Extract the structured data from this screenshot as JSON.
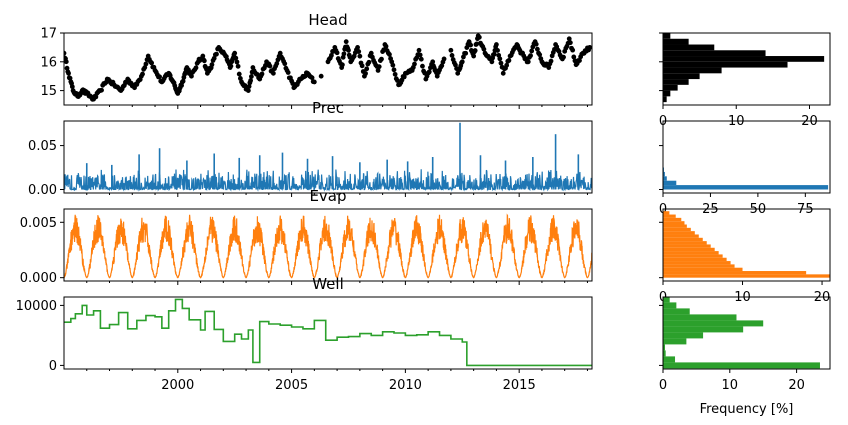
{
  "colors": {
    "head": "#000000",
    "prec": "#1f77b4",
    "evap": "#ff7f0e",
    "well": "#2ca02c"
  },
  "chart_data": [
    {
      "type": "scatter",
      "title": "Head",
      "xlim": [
        1995,
        2018.2
      ],
      "ylim": [
        14.5,
        17
      ],
      "yticks": [
        15,
        16,
        17
      ],
      "yticklabels": [
        "15",
        "16",
        "17"
      ],
      "x": [
        1995.0,
        1995.2,
        1995.4,
        1995.6,
        1995.8,
        1996.0,
        1996.3,
        1996.6,
        1996.9,
        1997.2,
        1997.5,
        1997.8,
        1998.1,
        1998.4,
        1998.7,
        1999.0,
        1999.3,
        1999.6,
        1999.8,
        2000.0,
        2000.2,
        2000.4,
        2000.6,
        2000.9,
        2001.1,
        2001.3,
        2001.5,
        2001.8,
        2002.1,
        2002.3,
        2002.5,
        2002.8,
        2003.1,
        2003.3,
        2003.6,
        2003.9,
        2004.2,
        2004.5,
        2004.8,
        2005.1,
        2005.4,
        2005.7,
        2006.0,
        2006.3,
        2006.6,
        2006.9,
        2007.2,
        2007.4,
        2007.6,
        2007.9,
        2008.2,
        2008.5,
        2008.8,
        2009.1,
        2009.4,
        2009.7,
        2010.0,
        2010.3,
        2010.6,
        2010.9,
        2011.2,
        2011.4,
        2011.7,
        2012.0,
        2012.3,
        2012.5,
        2012.8,
        2013.0,
        2013.2,
        2013.5,
        2013.8,
        2014.0,
        2014.3,
        2014.6,
        2014.9,
        2015.1,
        2015.4,
        2015.7,
        2016.0,
        2016.3,
        2016.6,
        2016.9,
        2017.2,
        2017.5,
        2017.8,
        2018.1
      ],
      "y": [
        16.3,
        15.6,
        15.0,
        14.8,
        15.0,
        14.9,
        14.7,
        15.0,
        15.4,
        15.2,
        15.0,
        15.4,
        15.1,
        15.5,
        16.2,
        15.7,
        15.3,
        15.6,
        15.3,
        14.9,
        15.3,
        15.8,
        15.5,
        16.0,
        16.2,
        15.6,
        15.9,
        16.5,
        16.2,
        15.8,
        16.3,
        15.3,
        15.0,
        15.8,
        15.4,
        16.0,
        15.6,
        16.3,
        15.7,
        15.1,
        15.4,
        15.6,
        15.3,
        15.5,
        16.0,
        16.5,
        15.8,
        16.7,
        16.0,
        16.5,
        15.5,
        16.3,
        15.7,
        16.6,
        16.0,
        15.2,
        15.6,
        15.7,
        16.4,
        15.4,
        16.0,
        15.5,
        16.1,
        16.4,
        15.6,
        16.0,
        16.7,
        16.2,
        16.9,
        16.3,
        16.0,
        16.6,
        15.6,
        16.2,
        16.6,
        16.3,
        16.0,
        16.7,
        16.0,
        15.8,
        16.6,
        16.1,
        16.8,
        15.9,
        16.3,
        16.5
      ]
    },
    {
      "type": "line",
      "title": "Prec",
      "xlim": [
        1995,
        2018.2
      ],
      "ylim": [
        -0.004,
        0.078
      ],
      "yticks": [
        0,
        0.05
      ],
      "yticklabels": [
        "0.00",
        "0.05"
      ],
      "peaks": [
        {
          "x": 1996.0,
          "y": 0.03
        },
        {
          "x": 1997.1,
          "y": 0.028
        },
        {
          "x": 1998.3,
          "y": 0.04
        },
        {
          "x": 1999.2,
          "y": 0.047
        },
        {
          "x": 2000.4,
          "y": 0.033
        },
        {
          "x": 2001.6,
          "y": 0.041
        },
        {
          "x": 2002.7,
          "y": 0.036
        },
        {
          "x": 2003.6,
          "y": 0.039
        },
        {
          "x": 2004.6,
          "y": 0.042
        },
        {
          "x": 2005.7,
          "y": 0.035
        },
        {
          "x": 2006.8,
          "y": 0.038
        },
        {
          "x": 2008.0,
          "y": 0.031
        },
        {
          "x": 2009.2,
          "y": 0.034
        },
        {
          "x": 2010.1,
          "y": 0.032
        },
        {
          "x": 2011.2,
          "y": 0.037
        },
        {
          "x": 2012.4,
          "y": 0.076
        },
        {
          "x": 2013.3,
          "y": 0.039
        },
        {
          "x": 2014.4,
          "y": 0.033
        },
        {
          "x": 2015.6,
          "y": 0.037
        },
        {
          "x": 2016.6,
          "y": 0.063
        },
        {
          "x": 2017.6,
          "y": 0.04
        }
      ]
    },
    {
      "type": "line",
      "title": "Evap",
      "xlim": [
        1995,
        2018.2
      ],
      "ylim": [
        -0.0003,
        0.0062
      ],
      "yticks": [
        0,
        0.005
      ],
      "yticklabels": [
        "0.000",
        "0.005"
      ],
      "seasonal_peak": 0.0057
    },
    {
      "type": "line",
      "title": "Well",
      "xlim": [
        1995,
        2018.2
      ],
      "ylim": [
        -600,
        11400
      ],
      "yticks": [
        0,
        10000
      ],
      "yticklabels": [
        "0",
        "10000"
      ],
      "xticks": [
        2000,
        2005,
        2010,
        2015
      ],
      "xticklabels": [
        "2000",
        "2005",
        "2010",
        "2015"
      ],
      "x": [
        1995.0,
        1995.3,
        1995.5,
        1995.8,
        1996.0,
        1996.3,
        1996.6,
        1997.0,
        1997.4,
        1997.8,
        1998.2,
        1998.6,
        1999.0,
        1999.3,
        1999.6,
        1999.9,
        2000.2,
        2000.5,
        2001.0,
        2001.2,
        2001.6,
        2002.0,
        2002.5,
        2002.8,
        2003.1,
        2003.3,
        2003.6,
        2004.0,
        2004.5,
        2005.0,
        2005.5,
        2006.0,
        2006.5,
        2007.0,
        2007.5,
        2008.0,
        2008.5,
        2009.0,
        2009.5,
        2010.0,
        2010.5,
        2011.0,
        2011.5,
        2012.0,
        2012.5,
        2012.7,
        2013.0,
        2014.0,
        2015.0,
        2016.0,
        2017.0,
        2018.2
      ],
      "y": [
        7200,
        7800,
        8600,
        10000,
        8400,
        9100,
        6200,
        6800,
        8800,
        6100,
        7500,
        8300,
        8100,
        6200,
        9100,
        11000,
        9500,
        7600,
        5900,
        9000,
        6000,
        4000,
        5200,
        4400,
        5900,
        500,
        7300,
        6900,
        6700,
        6400,
        6100,
        7500,
        4200,
        4700,
        4800,
        5300,
        5000,
        5600,
        5400,
        5000,
        5100,
        5600,
        5000,
        4400,
        3900,
        0,
        0,
        0,
        0,
        0,
        0,
        0
      ]
    },
    {
      "type": "bar",
      "orientation": "horizontal",
      "panel": "Head",
      "xlim": [
        0,
        22.8
      ],
      "xticks": [
        0,
        10,
        20
      ],
      "xticklabels": [
        "0",
        "10",
        "20"
      ],
      "bins": [
        14.6,
        14.8,
        15.0,
        15.2,
        15.4,
        15.6,
        15.8,
        16.0,
        16.2,
        16.4,
        16.6,
        16.8
      ],
      "values": [
        0.5,
        1.0,
        2.0,
        3.5,
        5.0,
        8.0,
        17.0,
        22.0,
        14.0,
        7.0,
        3.5,
        1.0
      ]
    },
    {
      "type": "bar",
      "orientation": "horizontal",
      "panel": "Prec",
      "xlim": [
        0,
        88
      ],
      "xticks": [
        0,
        25,
        50,
        75
      ],
      "xticklabels": [
        "0",
        "25",
        "50",
        "75"
      ],
      "bins": [
        0.0,
        0.005,
        0.01,
        0.015,
        0.02
      ],
      "values": [
        87,
        7,
        2,
        1,
        0.5
      ]
    },
    {
      "type": "bar",
      "orientation": "horizontal",
      "panel": "Evap",
      "xlim": [
        0,
        21
      ],
      "xticks": [
        0,
        10,
        20
      ],
      "xticklabels": [
        "0",
        "10",
        "20"
      ],
      "bins": [
        0,
        0.0003,
        0.0006,
        0.0009,
        0.0012,
        0.0015,
        0.0018,
        0.0021,
        0.0024,
        0.0027,
        0.003,
        0.0033,
        0.0036,
        0.0039,
        0.0042,
        0.0045,
        0.0048,
        0.0051,
        0.0054,
        0.0057
      ],
      "values": [
        21,
        18,
        10,
        9,
        8.5,
        8,
        7.5,
        7,
        6.5,
        6,
        5.5,
        5,
        4.5,
        4,
        3.5,
        3,
        2.7,
        2.3,
        1.6,
        0.8
      ]
    },
    {
      "type": "bar",
      "orientation": "horizontal",
      "panel": "Well",
      "xlim": [
        0,
        25
      ],
      "xticks": [
        0,
        10,
        20
      ],
      "xticklabels": [
        "0",
        "10",
        "20"
      ],
      "xlabel": "Frequency [%]",
      "bins": [
        -500,
        500,
        1500,
        2500,
        3500,
        4500,
        5500,
        6500,
        7500,
        8500,
        9500,
        10500
      ],
      "values": [
        23.5,
        1.8,
        0.4,
        0.3,
        3.5,
        6,
        12,
        15,
        11,
        4,
        2,
        1
      ]
    }
  ]
}
